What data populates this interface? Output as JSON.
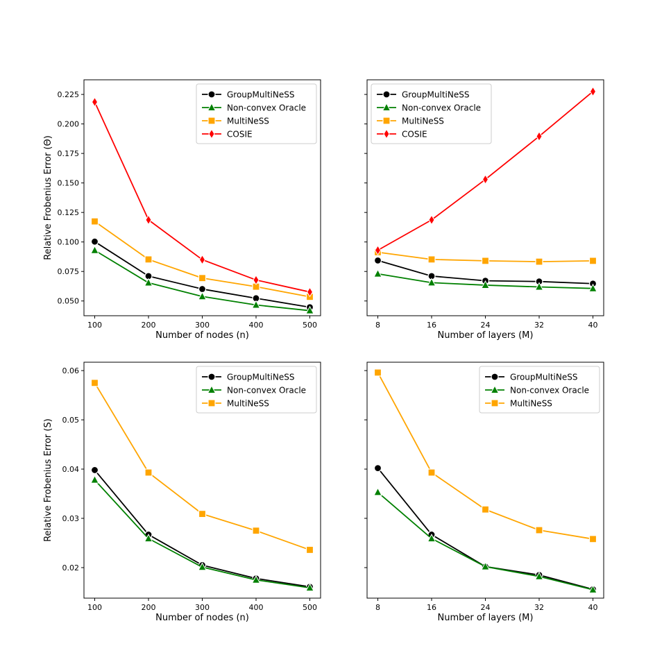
{
  "chart_data": [
    {
      "type": "line",
      "xlabel": "Number of nodes (n)",
      "ylabel": "Relative Frobenius Error (Θ)",
      "x": [
        100,
        200,
        300,
        400,
        500
      ],
      "xticks": [
        100,
        200,
        300,
        400,
        500
      ],
      "yticks": [
        0.05,
        0.075,
        0.1,
        0.125,
        0.15,
        0.175,
        0.2,
        0.225
      ],
      "ydecimals": 3,
      "xlim": [
        80,
        520
      ],
      "ylim": [
        0.0375,
        0.2374
      ],
      "legend_position": "top-right",
      "series": [
        {
          "name": "GroupMultiNeSS",
          "color": "#000000",
          "marker": "circle",
          "values": [
            0.1003,
            0.0711,
            0.0601,
            0.0523,
            0.0447
          ]
        },
        {
          "name": "Non-convex Oracle",
          "color": "#008000",
          "marker": "triangle",
          "values": [
            0.0929,
            0.0654,
            0.0538,
            0.0466,
            0.0418
          ]
        },
        {
          "name": "MultiNeSS",
          "color": "#ffa500",
          "marker": "square",
          "values": [
            0.1174,
            0.0852,
            0.0694,
            0.0621,
            0.0535
          ]
        },
        {
          "name": "COSIE",
          "color": "#ff0000",
          "marker": "diamond",
          "values": [
            0.2186,
            0.1187,
            0.085,
            0.0678,
            0.0576
          ]
        }
      ]
    },
    {
      "type": "line",
      "xlabel": "Number of layers (M)",
      "ylabel": "",
      "x": [
        8,
        16,
        24,
        32,
        40
      ],
      "xticks": [
        8,
        16,
        24,
        32,
        40
      ],
      "yticks": [
        0.05,
        0.075,
        0.1,
        0.125,
        0.15,
        0.175,
        0.2,
        0.225
      ],
      "ydecimals": 3,
      "show_ytick_labels": false,
      "xlim": [
        6.4,
        41.6
      ],
      "ylim": [
        0.0375,
        0.2374
      ],
      "legend_position": "top-left",
      "series": [
        {
          "name": "GroupMultiNeSS",
          "color": "#000000",
          "marker": "circle",
          "values": [
            0.0843,
            0.0711,
            0.0671,
            0.0665,
            0.0647
          ]
        },
        {
          "name": "Non-convex Oracle",
          "color": "#008000",
          "marker": "triangle",
          "values": [
            0.073,
            0.0655,
            0.0634,
            0.0619,
            0.0606
          ]
        },
        {
          "name": "MultiNeSS",
          "color": "#ffa500",
          "marker": "square",
          "values": [
            0.0913,
            0.0852,
            0.084,
            0.0833,
            0.084
          ]
        },
        {
          "name": "COSIE",
          "color": "#ff0000",
          "marker": "diamond",
          "values": [
            0.093,
            0.1187,
            0.153,
            0.1895,
            0.2275
          ]
        }
      ]
    },
    {
      "type": "line",
      "xlabel": "Number of nodes (n)",
      "ylabel": "Relative Frobenius Error (S)",
      "x": [
        100,
        200,
        300,
        400,
        500
      ],
      "xticks": [
        100,
        200,
        300,
        400,
        500
      ],
      "yticks": [
        0.02,
        0.03,
        0.04,
        0.05,
        0.06
      ],
      "ydecimals": 2,
      "xlim": [
        80,
        520
      ],
      "ylim": [
        0.0138,
        0.0617
      ],
      "legend_position": "top-right",
      "series": [
        {
          "name": "GroupMultiNeSS",
          "color": "#000000",
          "marker": "circle",
          "values": [
            0.0398,
            0.0267,
            0.0205,
            0.0178,
            0.0161
          ]
        },
        {
          "name": "Non-convex Oracle",
          "color": "#008000",
          "marker": "triangle",
          "values": [
            0.0378,
            0.0259,
            0.0201,
            0.0175,
            0.0159
          ]
        },
        {
          "name": "MultiNeSS",
          "color": "#ffa500",
          "marker": "square",
          "values": [
            0.0575,
            0.0393,
            0.0309,
            0.0275,
            0.0236
          ]
        }
      ]
    },
    {
      "type": "line",
      "xlabel": "Number of layers (M)",
      "ylabel": "",
      "x": [
        8,
        16,
        24,
        32,
        40
      ],
      "xticks": [
        8,
        16,
        24,
        32,
        40
      ],
      "yticks": [
        0.02,
        0.03,
        0.04,
        0.05,
        0.06
      ],
      "ydecimals": 2,
      "show_ytick_labels": false,
      "xlim": [
        6.4,
        41.6
      ],
      "ylim": [
        0.0138,
        0.0617
      ],
      "legend_position": "top-right",
      "series": [
        {
          "name": "GroupMultiNeSS",
          "color": "#000000",
          "marker": "circle",
          "values": [
            0.0402,
            0.0267,
            0.0202,
            0.0185,
            0.0156
          ]
        },
        {
          "name": "Non-convex Oracle",
          "color": "#008000",
          "marker": "triangle",
          "values": [
            0.0353,
            0.0259,
            0.0202,
            0.0182,
            0.0155
          ]
        },
        {
          "name": "MultiNeSS",
          "color": "#ffa500",
          "marker": "square",
          "values": [
            0.0596,
            0.0393,
            0.0318,
            0.0276,
            0.0258
          ]
        }
      ]
    }
  ]
}
